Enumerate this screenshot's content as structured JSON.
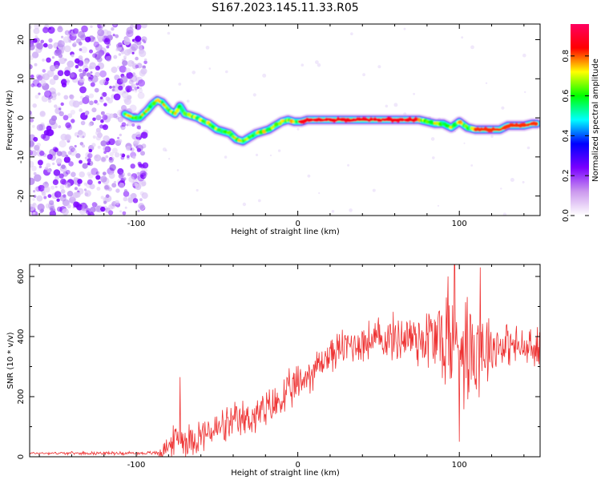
{
  "title": "S167.2023.145.11.33.R05",
  "chart_data": [
    {
      "type": "heatmap",
      "name": "spectrogram",
      "xlabel": "Height of straight line (km)",
      "ylabel": "Frequency (Hz)",
      "xlim": [
        -166,
        150
      ],
      "ylim": [
        -25,
        24
      ],
      "x_ticks": [
        -100,
        0,
        100
      ],
      "y_ticks": [
        -20,
        -10,
        0,
        10,
        20
      ],
      "noise_region_x": [
        -166,
        -94
      ],
      "ridge": {
        "x": [
          -107,
          -102,
          -98,
          -93,
          -90,
          -87,
          -84,
          -80,
          -76,
          -73,
          -70,
          -66,
          -62,
          -58,
          -55,
          -50,
          -46,
          -42,
          -38,
          -34,
          -30,
          -26,
          -22,
          -18,
          -14,
          -10,
          -6,
          -2,
          2,
          6,
          10,
          20,
          30,
          40,
          50,
          60,
          70,
          75,
          80,
          85,
          90,
          95,
          100,
          105,
          110,
          115,
          120,
          125,
          130,
          135,
          140,
          145,
          148
        ],
        "y": [
          1,
          0,
          0,
          2,
          3.5,
          4.5,
          4,
          2,
          1,
          3,
          1,
          0.5,
          0,
          -1,
          -1.5,
          -3,
          -3.5,
          -4,
          -5.5,
          -6,
          -5,
          -4,
          -3.5,
          -3,
          -2,
          -1,
          -0.5,
          -1,
          -1,
          -0.5,
          -0.5,
          -0.5,
          -0.5,
          -0.5,
          -0.5,
          -0.5,
          -0.5,
          -0.5,
          -1,
          -1.5,
          -1.5,
          -2.5,
          -1,
          -2.5,
          -3,
          -3,
          -3,
          -3,
          -2,
          -2,
          -2,
          -1.5,
          -1.5
        ]
      },
      "colorbar": {
        "label": "Normalized spectral amplitude",
        "ticks": [
          "0.0",
          "0.2",
          "0.4",
          "0.6",
          "0.8"
        ],
        "tick_values": [
          0.0,
          0.2,
          0.4,
          0.6,
          0.8
        ],
        "range": [
          0,
          0.96
        ],
        "colors": [
          "#ffffff",
          "#cc99ee",
          "#7a00ff",
          "#0000ff",
          "#00ffff",
          "#00ff00",
          "#ffff00",
          "#ff0000",
          "#ff0060"
        ]
      }
    },
    {
      "type": "line",
      "name": "snr",
      "xlabel": "Height of straight line (km)",
      "ylabel": "SNR (10 * v/v)",
      "xlim": [
        -166,
        150
      ],
      "ylim": [
        0,
        640
      ],
      "x_ticks": [
        -100,
        0,
        100
      ],
      "y_ticks": [
        0,
        200,
        400,
        600
      ],
      "color": "#ee3333",
      "trend": {
        "x": [
          -166,
          -90,
          -85,
          -80,
          -75,
          -70,
          -60,
          -50,
          -40,
          -30,
          -20,
          -10,
          0,
          10,
          20,
          30,
          50,
          70,
          90,
          100,
          110,
          120,
          130,
          140,
          150
        ],
        "y": [
          12,
          12,
          15,
          35,
          60,
          55,
          70,
          90,
          110,
          130,
          150,
          190,
          240,
          290,
          340,
          370,
          390,
          400,
          390,
          380,
          370,
          370,
          375,
          360,
          350
        ]
      },
      "noise_amplitude": {
        "x": [
          -166,
          -90,
          -85,
          -80,
          -75,
          -60,
          -40,
          -20,
          0,
          20,
          40,
          60,
          80,
          90,
          100,
          110,
          120,
          130,
          140,
          150
        ],
        "y": [
          4,
          6,
          20,
          40,
          60,
          60,
          65,
          70,
          70,
          60,
          70,
          80,
          120,
          180,
          200,
          200,
          100,
          70,
          70,
          80
        ]
      },
      "peaks": [
        {
          "x": -73,
          "y": 265
        },
        {
          "x": 93,
          "y": 600
        },
        {
          "x": 97,
          "y": 640
        },
        {
          "x": 113,
          "y": 630
        },
        {
          "x": 100,
          "y": 50
        }
      ]
    }
  ]
}
